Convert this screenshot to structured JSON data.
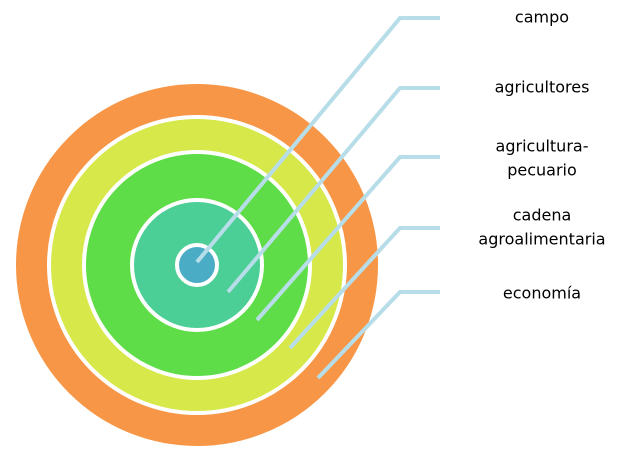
{
  "nodes": [
    {
      "label": [
        "campo"
      ]
    },
    {
      "label": [
        "agricultores"
      ]
    },
    {
      "label": [
        "agricultura-",
        "pecuario"
      ]
    },
    {
      "label": [
        "cadena",
        "agroalimentaria"
      ]
    },
    {
      "label": [
        "economía"
      ]
    }
  ]
}
